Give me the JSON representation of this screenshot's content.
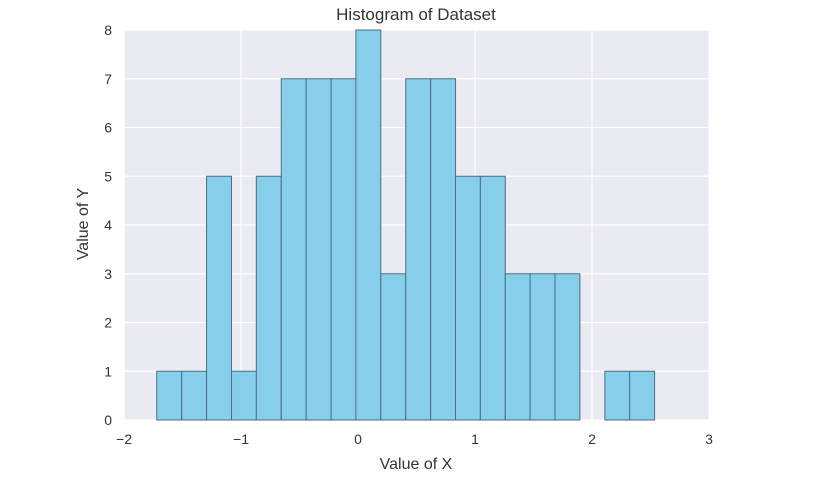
{
  "chart_data": {
    "type": "bar",
    "title": "Histogram of Dataset",
    "xlabel": "Value of X",
    "ylabel": "Value of Y",
    "xlim": [
      -2,
      3
    ],
    "ylim": [
      0,
      8
    ],
    "xticks": [
      "−2",
      "−1",
      "0",
      "1",
      "2",
      "3"
    ],
    "yticks": [
      "0",
      "1",
      "2",
      "3",
      "4",
      "5",
      "6",
      "7",
      "8"
    ],
    "grid": true,
    "bin_width": 0.2128,
    "bins": [
      {
        "x0": -1.72,
        "count": 1
      },
      {
        "x0": -1.507,
        "count": 1
      },
      {
        "x0": -1.294,
        "count": 5
      },
      {
        "x0": -1.081,
        "count": 1
      },
      {
        "x0": -0.869,
        "count": 5
      },
      {
        "x0": -0.656,
        "count": 7
      },
      {
        "x0": -0.443,
        "count": 7
      },
      {
        "x0": -0.23,
        "count": 7
      },
      {
        "x0": -0.018,
        "count": 8
      },
      {
        "x0": 0.195,
        "count": 3
      },
      {
        "x0": 0.408,
        "count": 7
      },
      {
        "x0": 0.621,
        "count": 7
      },
      {
        "x0": 0.833,
        "count": 5
      },
      {
        "x0": 1.046,
        "count": 5
      },
      {
        "x0": 1.259,
        "count": 3
      },
      {
        "x0": 1.471,
        "count": 3
      },
      {
        "x0": 1.684,
        "count": 3
      },
      {
        "x0": 1.897,
        "count": 0
      },
      {
        "x0": 2.11,
        "count": 1
      },
      {
        "x0": 2.322,
        "count": 1
      }
    ],
    "colors": {
      "background": "#eaeaf2",
      "grid": "#ffffff",
      "bar_fill": "#87ceeb",
      "bar_edge": "#4a6f80"
    }
  }
}
